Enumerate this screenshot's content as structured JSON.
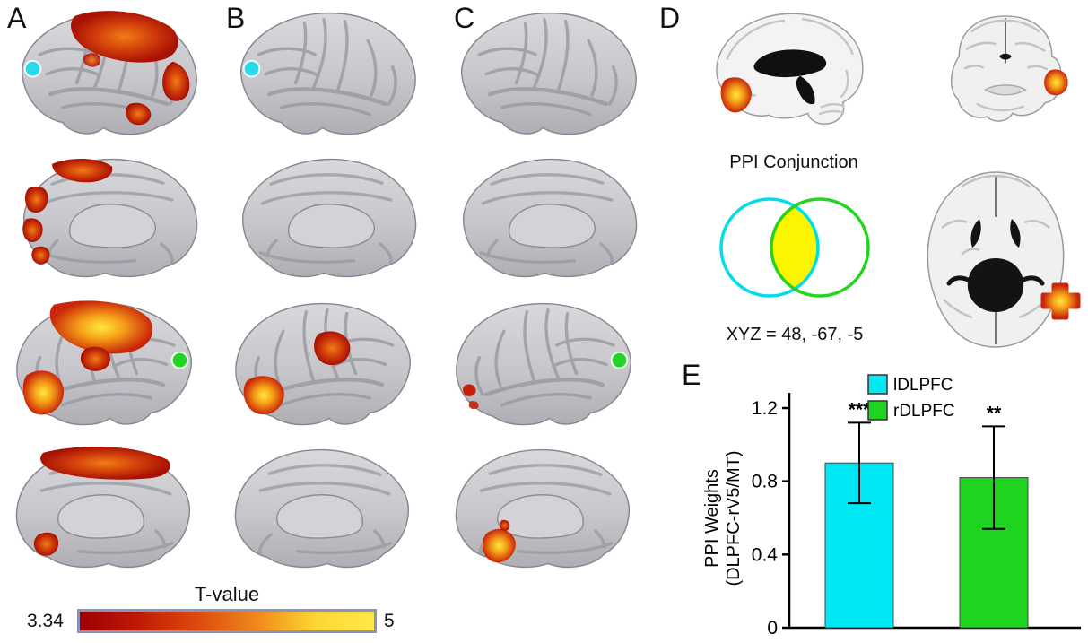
{
  "figure": {
    "panels": {
      "a": {
        "label": "A"
      },
      "b": {
        "label": "B"
      },
      "c": {
        "label": "C"
      },
      "d": {
        "label": "D",
        "conjunction_title": "PPI Conjunction",
        "coordinates_text": "XYZ = 48, -67, -5",
        "venn": {
          "left_circle_color": "#00dde8",
          "right_circle_color": "#25d41e",
          "overlap_color": "#fbf500"
        }
      },
      "e": {
        "label": "E"
      }
    }
  },
  "colorbar": {
    "title": "T-value",
    "min_label": "3.34",
    "max_label": "5",
    "gradient": [
      "#9c0005",
      "#c01a05",
      "#dd4a0d",
      "#f0881a",
      "#fcd733",
      "#ffe948"
    ],
    "border_color": "#8a93b8"
  },
  "seeds": {
    "ldlpfc_marker_color": "#2cd9e8",
    "rdlpfc_marker_color": "#21d425"
  },
  "chart_data": {
    "type": "bar",
    "categories": [
      "lDLPFC",
      "rDLPFC"
    ],
    "values": [
      0.9,
      0.82
    ],
    "error_upper": [
      0.22,
      0.28
    ],
    "error_lower": [
      0.22,
      0.28
    ],
    "significance": [
      "***",
      "**"
    ],
    "bar_colors": [
      "#00e8f4",
      "#1fd41f"
    ],
    "ylabel_line1": "PPI Weights",
    "ylabel_line2": "(DLPFC-rV5/MT)",
    "yticks": [
      {
        "value": 0,
        "label": "0"
      },
      {
        "value": 0.4,
        "label": "0.4"
      },
      {
        "value": 0.8,
        "label": "0.8"
      },
      {
        "value": 1.2,
        "label": "1.2"
      }
    ],
    "ylim": [
      0,
      1.2
    ],
    "legend": [
      {
        "label": "lDLPFC",
        "color": "#00e8f4"
      },
      {
        "label": "rDLPFC",
        "color": "#1fd41f"
      }
    ],
    "grid": false,
    "legend_position": "upper-right-of-plot"
  }
}
